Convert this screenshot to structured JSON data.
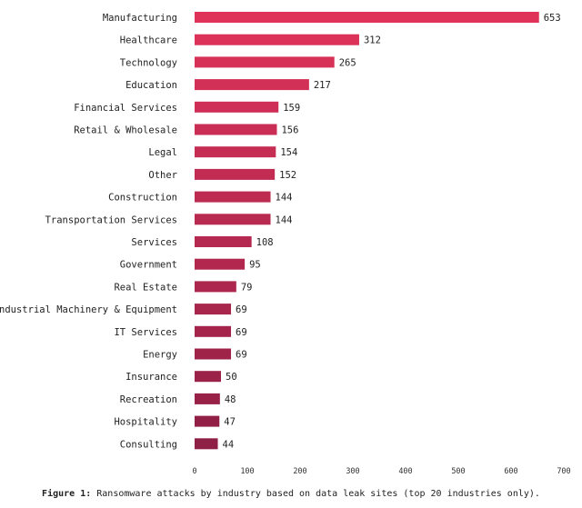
{
  "chart_data": {
    "type": "bar",
    "orientation": "horizontal",
    "categories": [
      "Manufacturing",
      "Healthcare",
      "Technology",
      "Education",
      "Financial Services",
      "Retail & Wholesale",
      "Legal",
      "Other",
      "Construction",
      "Transportation Services",
      "Services",
      "Government",
      "Real Estate",
      "Industrial Machinery & Equipment",
      "IT Services",
      "Energy",
      "Insurance",
      "Recreation",
      "Hospitality",
      "Consulting"
    ],
    "values": [
      653,
      312,
      265,
      217,
      159,
      156,
      154,
      152,
      144,
      144,
      108,
      95,
      79,
      69,
      69,
      69,
      50,
      48,
      47,
      44
    ],
    "xlim": [
      0,
      700
    ],
    "xticks": [
      0,
      100,
      200,
      300,
      400,
      500,
      600,
      700
    ],
    "grid": false,
    "bar_color_top": "#e0335a",
    "bar_color_bottom": "#8e1f45"
  },
  "caption": {
    "prefix": "Figure 1:",
    "text": "Ransomware attacks by industry based on data leak sites (top 20 industries only)."
  }
}
